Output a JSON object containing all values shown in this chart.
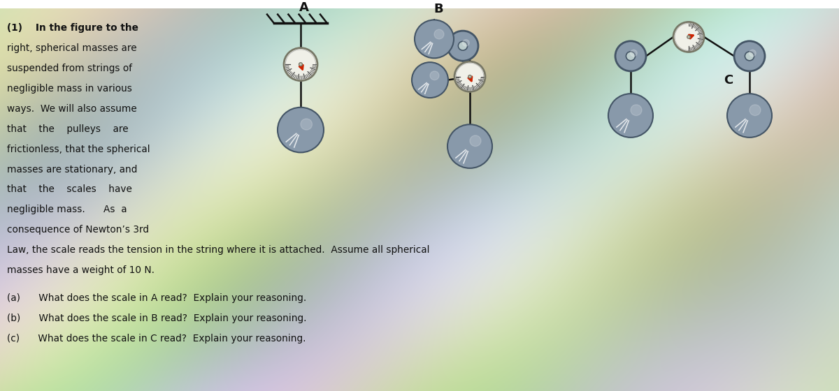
{
  "bg_color": "#c8cfc0",
  "text_color": "#111111",
  "sphere_color": "#8899aa",
  "sphere_edge": "#445566",
  "scale_face": "#f0f0e8",
  "scale_edge": "#777766",
  "scale_pointer": "#cc2200",
  "string_color": "#111111",
  "support_color": "#111111",
  "hatch_color": "#111111",
  "pulley_color": "#8899aa",
  "pulley_edge": "#445566",
  "label_A": "A",
  "label_B": "B",
  "label_C": "C",
  "text_lines": [
    "(1)    In the figure to the",
    "right, spherical masses are",
    "suspended from strings of",
    "negligible mass in various",
    "ways.  We will also assume",
    "that    the    pulleys    are",
    "frictionless, that the spherical",
    "masses are stationary, and",
    "that    the    scales    have",
    "negligible mass.      As  a",
    "consequence of Newton’s 3rd"
  ],
  "long_line1": "Law, the scale reads the tension in the string where it is attached.  Assume all spherical",
  "long_line2": "masses have a weight of 10 N.",
  "qa_lines": [
    "(a)      What does the scale in A read?  Explain your reasoning.",
    "(b)      What does the scale in B read?  Explain your reasoning.",
    "(c)      What does the scale in C read?  Explain your reasoning."
  ]
}
